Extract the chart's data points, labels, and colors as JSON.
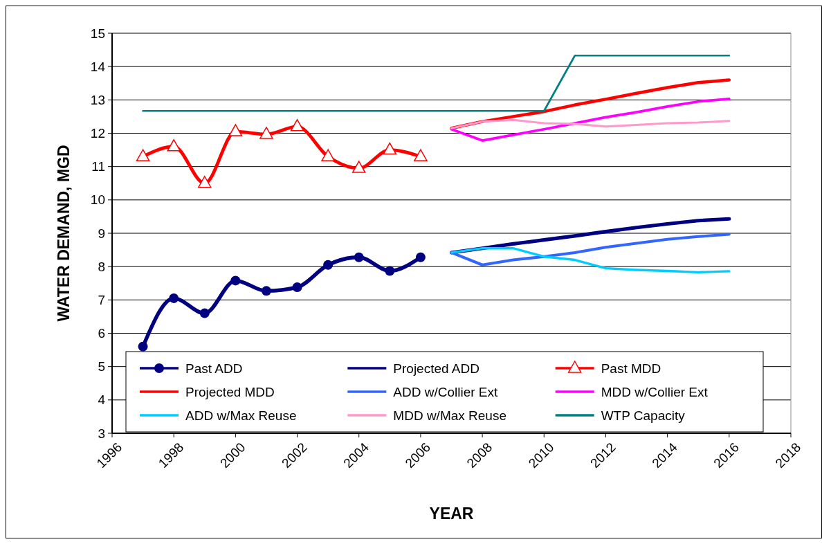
{
  "chart_data": {
    "type": "line",
    "xlabel": "YEAR",
    "ylabel": "WATER DEMAND, MGD",
    "xlim": [
      1996,
      2018
    ],
    "xticks": [
      1996,
      1998,
      2000,
      2002,
      2004,
      2006,
      2008,
      2010,
      2012,
      2014,
      2016,
      2018
    ],
    "ylim": [
      3,
      15
    ],
    "yticks": [
      3,
      4,
      5,
      6,
      7,
      8,
      9,
      10,
      11,
      12,
      13,
      14,
      15
    ],
    "grid": "y",
    "legend": "bottom",
    "series": [
      {
        "name": "Past ADD",
        "color": "#000080",
        "marker": "circle",
        "x": [
          1997,
          1998,
          1999,
          2000,
          2001,
          2002,
          2003,
          2004,
          2005,
          2006
        ],
        "values": [
          5.6,
          7.05,
          6.6,
          7.58,
          7.27,
          7.38,
          8.05,
          8.28,
          7.87,
          8.28
        ]
      },
      {
        "name": "Projected ADD",
        "color": "#000080",
        "marker": "none",
        "x": [
          2007,
          2008,
          2009,
          2010,
          2011,
          2012,
          2013,
          2014,
          2015,
          2016
        ],
        "values": [
          8.42,
          8.55,
          8.68,
          8.8,
          8.92,
          9.05,
          9.17,
          9.28,
          9.38,
          9.43
        ]
      },
      {
        "name": "Past MDD",
        "color": "#ff0000",
        "marker": "triangle",
        "x": [
          1997,
          1998,
          1999,
          2000,
          2001,
          2002,
          2003,
          2004,
          2005,
          2006
        ],
        "values": [
          11.3,
          11.6,
          10.5,
          12.05,
          11.97,
          12.2,
          11.3,
          10.95,
          11.5,
          11.3
        ]
      },
      {
        "name": "Projected MDD",
        "color": "#ff0000",
        "marker": "none",
        "x": [
          2007,
          2008,
          2009,
          2010,
          2011,
          2012,
          2013,
          2014,
          2015,
          2016
        ],
        "values": [
          12.15,
          12.35,
          12.5,
          12.65,
          12.85,
          13.02,
          13.2,
          13.37,
          13.52,
          13.6
        ]
      },
      {
        "name": "ADD w/Collier Ext",
        "color": "#3366ff",
        "marker": "none",
        "x": [
          2007,
          2008,
          2009,
          2010,
          2011,
          2012,
          2013,
          2014,
          2015,
          2016
        ],
        "values": [
          8.42,
          8.05,
          8.2,
          8.3,
          8.42,
          8.58,
          8.7,
          8.82,
          8.9,
          8.97
        ]
      },
      {
        "name": "MDD w/Collier Ext",
        "color": "#ff00ff",
        "marker": "none",
        "x": [
          2007,
          2008,
          2009,
          2010,
          2011,
          2012,
          2013,
          2014,
          2015,
          2016
        ],
        "values": [
          12.12,
          11.78,
          11.95,
          12.12,
          12.3,
          12.48,
          12.63,
          12.8,
          12.95,
          13.03
        ]
      },
      {
        "name": "ADD w/Max Reuse",
        "color": "#00ccff",
        "marker": "none",
        "x": [
          2007,
          2008,
          2009,
          2010,
          2011,
          2012,
          2013,
          2014,
          2015,
          2016
        ],
        "values": [
          8.42,
          8.55,
          8.55,
          8.3,
          8.2,
          7.95,
          7.9,
          7.87,
          7.83,
          7.86
        ]
      },
      {
        "name": "MDD w/Max Reuse",
        "color": "#ff99cc",
        "marker": "none",
        "x": [
          2007,
          2008,
          2009,
          2010,
          2011,
          2012,
          2013,
          2014,
          2015,
          2016
        ],
        "values": [
          12.15,
          12.35,
          12.4,
          12.3,
          12.28,
          12.2,
          12.25,
          12.3,
          12.32,
          12.37
        ]
      },
      {
        "name": "WTP Capacity",
        "color": "#008080",
        "marker": "none",
        "x": [
          1997,
          2010,
          2011,
          2016
        ],
        "values": [
          12.67,
          12.67,
          14.33,
          14.33
        ]
      }
    ]
  }
}
